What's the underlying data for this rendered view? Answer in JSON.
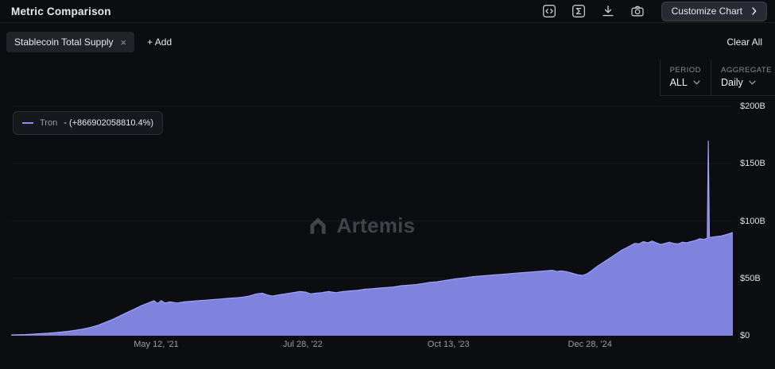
{
  "header": {
    "title": "Metric Comparison",
    "customize_button": "Customize Chart"
  },
  "filters": {
    "metric_chip": "Stablecoin Total Supply",
    "chip_close": "×",
    "add_label": "+ Add",
    "clear_all": "Clear All"
  },
  "controls": {
    "period_label": "PERIOD",
    "period_value": "ALL",
    "aggregate_label": "AGGREGATE",
    "aggregate_value": "Daily"
  },
  "legend": {
    "series_name": "Tron",
    "series_value": "- (+866902058810.4%)"
  },
  "watermark": "Artemis",
  "colors": {
    "background": "#0c0d11",
    "accent": "#8b8df0",
    "muted_text": "#9a9da5",
    "panel": "#212329"
  },
  "chart_data": {
    "type": "area",
    "title": "Stablecoin Total Supply",
    "ylabel": "",
    "xlabel": "",
    "unit": "USD billions",
    "ylim": [
      0,
      200
    ],
    "grid": true,
    "legend_position": "top-left",
    "y_ticks": [
      {
        "label": "$0",
        "value": 0
      },
      {
        "label": "$50B",
        "value": 50
      },
      {
        "label": "$100B",
        "value": 100
      },
      {
        "label": "$150B",
        "value": 150
      },
      {
        "label": "$200B",
        "value": 200
      }
    ],
    "x_ticks": [
      {
        "label": "May 12, '21",
        "pos": 0.201
      },
      {
        "label": "Jul 28, '22",
        "pos": 0.404
      },
      {
        "label": "Oct 13, '23",
        "pos": 0.606
      },
      {
        "label": "Dec 28, '24",
        "pos": 0.802
      }
    ],
    "series": [
      {
        "name": "Tron",
        "color": "#8b8df0",
        "points": [
          [
            0.0,
            0.6
          ],
          [
            0.01,
            0.8
          ],
          [
            0.02,
            1.0
          ],
          [
            0.03,
            1.3
          ],
          [
            0.04,
            1.7
          ],
          [
            0.05,
            2.1
          ],
          [
            0.06,
            2.6
          ],
          [
            0.07,
            3.2
          ],
          [
            0.08,
            3.9
          ],
          [
            0.09,
            4.8
          ],
          [
            0.1,
            5.8
          ],
          [
            0.11,
            7.2
          ],
          [
            0.12,
            9.0
          ],
          [
            0.13,
            11.5
          ],
          [
            0.14,
            14.0
          ],
          [
            0.15,
            17.0
          ],
          [
            0.16,
            20.0
          ],
          [
            0.17,
            23.0
          ],
          [
            0.18,
            26.0
          ],
          [
            0.19,
            28.5
          ],
          [
            0.198,
            30.5
          ],
          [
            0.203,
            28.0
          ],
          [
            0.208,
            30.5
          ],
          [
            0.213,
            28.5
          ],
          [
            0.22,
            29.5
          ],
          [
            0.23,
            28.5
          ],
          [
            0.24,
            29.5
          ],
          [
            0.25,
            30.0
          ],
          [
            0.26,
            30.5
          ],
          [
            0.27,
            31.0
          ],
          [
            0.28,
            31.5
          ],
          [
            0.29,
            32.0
          ],
          [
            0.3,
            32.5
          ],
          [
            0.31,
            33.0
          ],
          [
            0.32,
            33.5
          ],
          [
            0.33,
            34.5
          ],
          [
            0.34,
            36.5
          ],
          [
            0.348,
            37.0
          ],
          [
            0.355,
            35.5
          ],
          [
            0.362,
            34.5
          ],
          [
            0.37,
            35.5
          ],
          [
            0.38,
            36.5
          ],
          [
            0.39,
            37.5
          ],
          [
            0.4,
            38.5
          ],
          [
            0.408,
            38.0
          ],
          [
            0.415,
            36.5
          ],
          [
            0.422,
            37.0
          ],
          [
            0.43,
            37.5
          ],
          [
            0.44,
            38.5
          ],
          [
            0.45,
            37.5
          ],
          [
            0.46,
            38.5
          ],
          [
            0.47,
            39.0
          ],
          [
            0.48,
            39.5
          ],
          [
            0.49,
            40.5
          ],
          [
            0.5,
            41.0
          ],
          [
            0.51,
            41.5
          ],
          [
            0.52,
            42.0
          ],
          [
            0.53,
            42.5
          ],
          [
            0.54,
            43.5
          ],
          [
            0.55,
            44.0
          ],
          [
            0.56,
            44.5
          ],
          [
            0.57,
            45.5
          ],
          [
            0.58,
            46.5
          ],
          [
            0.59,
            47.0
          ],
          [
            0.6,
            48.0
          ],
          [
            0.61,
            49.0
          ],
          [
            0.62,
            50.0
          ],
          [
            0.63,
            50.5
          ],
          [
            0.64,
            51.5
          ],
          [
            0.65,
            52.0
          ],
          [
            0.66,
            52.5
          ],
          [
            0.67,
            53.0
          ],
          [
            0.68,
            53.5
          ],
          [
            0.69,
            54.0
          ],
          [
            0.7,
            54.5
          ],
          [
            0.71,
            55.0
          ],
          [
            0.72,
            55.5
          ],
          [
            0.73,
            56.0
          ],
          [
            0.74,
            56.5
          ],
          [
            0.75,
            57.0
          ],
          [
            0.756,
            56.0
          ],
          [
            0.762,
            56.5
          ],
          [
            0.768,
            56.0
          ],
          [
            0.774,
            55.0
          ],
          [
            0.78,
            54.0
          ],
          [
            0.786,
            53.0
          ],
          [
            0.792,
            52.5
          ],
          [
            0.798,
            54.0
          ],
          [
            0.804,
            56.5
          ],
          [
            0.81,
            59.5
          ],
          [
            0.816,
            62.0
          ],
          [
            0.822,
            64.5
          ],
          [
            0.828,
            67.0
          ],
          [
            0.834,
            69.5
          ],
          [
            0.84,
            72.0
          ],
          [
            0.846,
            74.5
          ],
          [
            0.852,
            76.5
          ],
          [
            0.858,
            78.5
          ],
          [
            0.864,
            80.5
          ],
          [
            0.87,
            80.0
          ],
          [
            0.876,
            82.0
          ],
          [
            0.882,
            81.0
          ],
          [
            0.888,
            82.5
          ],
          [
            0.894,
            81.0
          ],
          [
            0.9,
            79.5
          ],
          [
            0.906,
            80.5
          ],
          [
            0.912,
            81.5
          ],
          [
            0.918,
            80.5
          ],
          [
            0.924,
            80.0
          ],
          [
            0.93,
            81.5
          ],
          [
            0.936,
            81.0
          ],
          [
            0.942,
            82.0
          ],
          [
            0.948,
            83.0
          ],
          [
            0.954,
            84.5
          ],
          [
            0.96,
            84.0
          ],
          [
            0.9645,
            85.0
          ],
          [
            0.966,
            170.0
          ],
          [
            0.9675,
            85.5
          ],
          [
            0.972,
            86.0
          ],
          [
            0.978,
            86.5
          ],
          [
            0.984,
            87.0
          ],
          [
            0.99,
            88.0
          ],
          [
            0.995,
            89.0
          ],
          [
            1.0,
            90.0
          ]
        ]
      }
    ]
  }
}
